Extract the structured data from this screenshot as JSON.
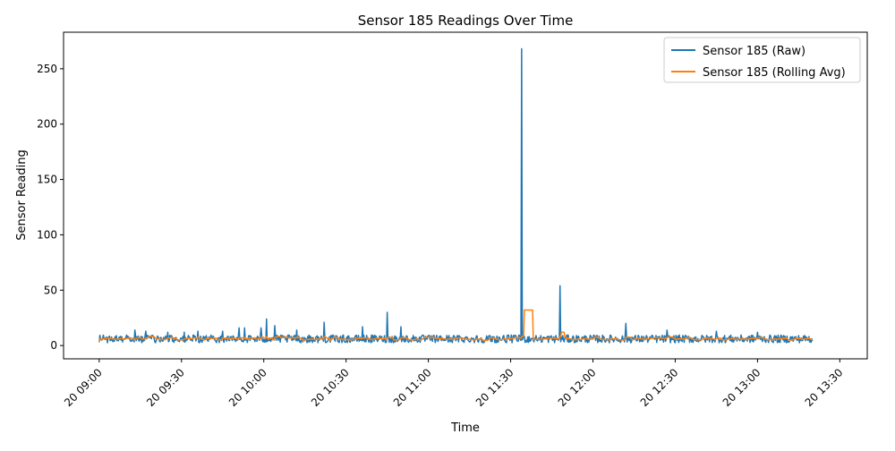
{
  "chart_data": {
    "type": "line",
    "title": "Sensor 185 Readings Over Time",
    "xlabel": "Time",
    "ylabel": "Sensor Reading",
    "x_range": [
      "09:00",
      "13:20"
    ],
    "xlim_minutes": [
      -13,
      280
    ],
    "ylim": [
      -12,
      283
    ],
    "yticks": [
      0,
      50,
      100,
      150,
      200,
      250
    ],
    "xtick_labels": [
      "20 09:00",
      "20 09:30",
      "20 10:00",
      "20 10:30",
      "20 11:00",
      "20 11:30",
      "20 12:00",
      "20 12:30",
      "20 13:00",
      "20 13:30"
    ],
    "xtick_minutes": [
      0,
      30,
      60,
      90,
      120,
      150,
      180,
      210,
      240,
      270
    ],
    "grid": false,
    "legend_position": "top-right",
    "series": [
      {
        "name": "Sensor 185 (Raw)",
        "color": "#1f77b4",
        "description_points": {
          "baseline": 6,
          "noise": 3.5,
          "spikes": [
            {
              "minute": 13,
              "value": 14
            },
            {
              "minute": 17,
              "value": 13
            },
            {
              "minute": 25,
              "value": 12
            },
            {
              "minute": 31,
              "value": 12
            },
            {
              "minute": 36,
              "value": 13
            },
            {
              "minute": 45,
              "value": 13
            },
            {
              "minute": 51,
              "value": 16
            },
            {
              "minute": 53,
              "value": 16
            },
            {
              "minute": 59,
              "value": 16
            },
            {
              "minute": 61,
              "value": 24
            },
            {
              "minute": 64,
              "value": 18
            },
            {
              "minute": 72,
              "value": 14
            },
            {
              "minute": 82,
              "value": 21
            },
            {
              "minute": 96,
              "value": 17
            },
            {
              "minute": 105,
              "value": 30
            },
            {
              "minute": 110,
              "value": 17
            },
            {
              "minute": 154,
              "value": 268
            },
            {
              "minute": 168,
              "value": 54
            },
            {
              "minute": 192,
              "value": 20
            },
            {
              "minute": 207,
              "value": 14
            },
            {
              "minute": 225,
              "value": 13
            },
            {
              "minute": 240,
              "value": 12
            }
          ]
        }
      },
      {
        "name": "Sensor 185 (Rolling Avg)",
        "color": "#ff7f0e",
        "description_points": {
          "baseline": 7,
          "elevated_segment": {
            "start_minute": 155,
            "end_minute": 158,
            "value": 32
          },
          "secondary_bump": {
            "minute": 169,
            "value": 12
          }
        }
      }
    ]
  }
}
